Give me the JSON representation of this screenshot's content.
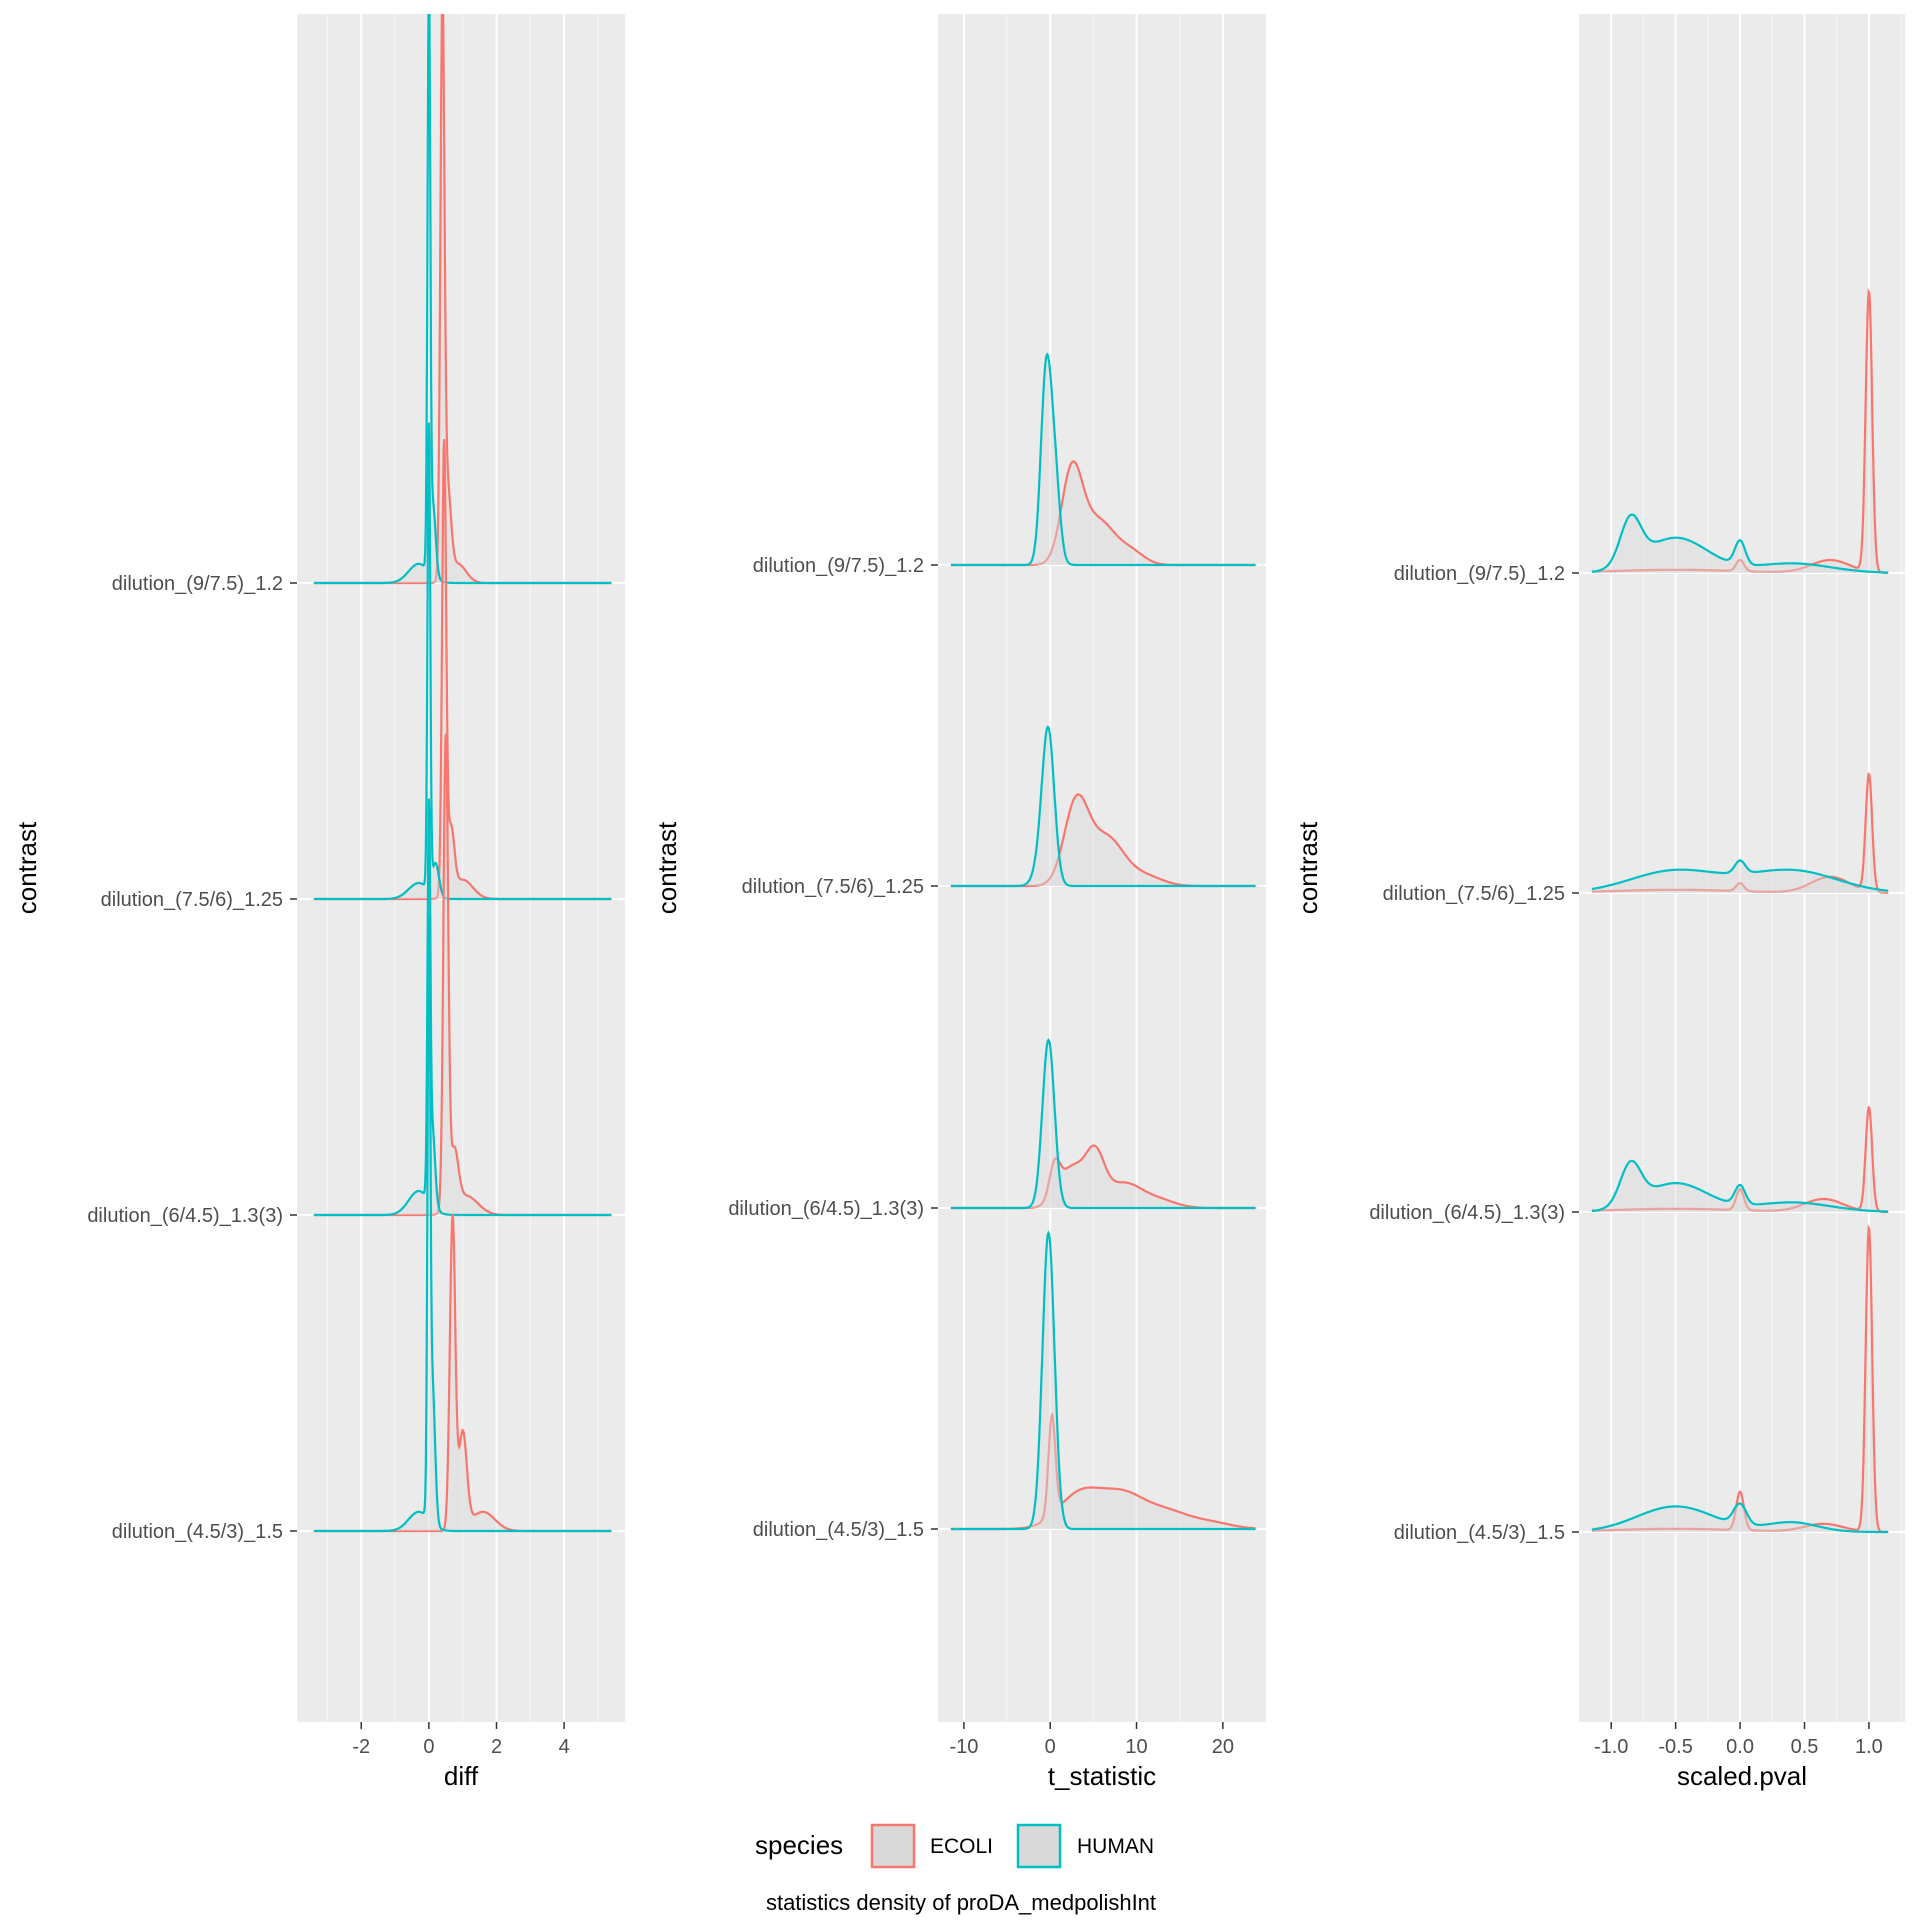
{
  "chart_data": [
    {
      "type": "area",
      "xlabel": "diff",
      "ylabel": "contrast",
      "xlim": [
        -3.9,
        5.8
      ],
      "xticks": [
        -2,
        0,
        2,
        4
      ],
      "xtick_labels": [
        "-2",
        "0",
        "2",
        "4"
      ],
      "categories": [
        "dilution_(9/7.5)_1.2",
        "dilution_(7.5/6)_1.25",
        "dilution_(6/4.5)_1.3(3)",
        "dilution_(4.5/3)_1.5"
      ],
      "x_range": [
        -3.4,
        5.4
      ],
      "curves": [
        {
          "category": "dilution_(9/7.5)_1.2",
          "species": "ECOLI",
          "peaks": [
            {
              "x": 0.4,
              "h": 3.53,
              "w": 0.06
            },
            {
              "x": 0.55,
              "h": 0.55,
              "w": 0.1
            },
            {
              "x": 0.85,
              "h": 0.12,
              "w": 0.25
            }
          ]
        },
        {
          "category": "dilution_(9/7.5)_1.2",
          "species": "HUMAN",
          "peaks": [
            {
              "x": 0.0,
              "h": 3.6,
              "w": 0.04
            },
            {
              "x": 0.12,
              "h": 0.45,
              "w": 0.08
            },
            {
              "x": -0.3,
              "h": 0.12,
              "w": 0.3
            }
          ]
        },
        {
          "category": "dilution_(7.5/6)_1.25",
          "species": "ECOLI",
          "peaks": [
            {
              "x": 0.45,
              "h": 2.8,
              "w": 0.06
            },
            {
              "x": 0.65,
              "h": 0.4,
              "w": 0.1
            },
            {
              "x": 1.0,
              "h": 0.12,
              "w": 0.3
            }
          ]
        },
        {
          "category": "dilution_(7.5/6)_1.25",
          "species": "HUMAN",
          "peaks": [
            {
              "x": 0.0,
              "h": 2.9,
              "w": 0.04
            },
            {
              "x": 0.2,
              "h": 0.2,
              "w": 0.1
            },
            {
              "x": -0.3,
              "h": 0.1,
              "w": 0.3
            }
          ]
        },
        {
          "category": "dilution_(6/4.5)_1.3(3)",
          "species": "ECOLI",
          "peaks": [
            {
              "x": 0.5,
              "h": 2.95,
              "w": 0.07
            },
            {
              "x": 0.75,
              "h": 0.35,
              "w": 0.12
            },
            {
              "x": 1.1,
              "h": 0.12,
              "w": 0.35
            }
          ]
        },
        {
          "category": "dilution_(6/4.5)_1.3(3)",
          "species": "HUMAN",
          "peaks": [
            {
              "x": 0.0,
              "h": 2.3,
              "w": 0.04
            },
            {
              "x": 0.1,
              "h": 0.5,
              "w": 0.08
            },
            {
              "x": -0.3,
              "h": 0.15,
              "w": 0.3
            }
          ]
        },
        {
          "category": "dilution_(4.5/3)_1.5",
          "species": "ECOLI",
          "peaks": [
            {
              "x": 0.7,
              "h": 1.95,
              "w": 0.08
            },
            {
              "x": 1.0,
              "h": 0.6,
              "w": 0.12
            },
            {
              "x": 1.6,
              "h": 0.12,
              "w": 0.35
            }
          ]
        },
        {
          "category": "dilution_(4.5/3)_1.5",
          "species": "HUMAN",
          "peaks": [
            {
              "x": 0.0,
              "h": 3.4,
              "w": 0.04
            },
            {
              "x": 0.1,
              "h": 0.9,
              "w": 0.08
            },
            {
              "x": -0.3,
              "h": 0.12,
              "w": 0.3
            }
          ]
        }
      ]
    },
    {
      "type": "area",
      "xlabel": "t_statistic",
      "ylabel": "contrast",
      "xlim": [
        -13,
        25
      ],
      "xticks": [
        -10,
        0,
        10,
        20
      ],
      "xtick_labels": [
        "-10",
        "0",
        "10",
        "20"
      ],
      "categories": [
        "dilution_(9/7.5)_1.2",
        "dilution_(7.5/6)_1.25",
        "dilution_(6/4.5)_1.3(3)",
        "dilution_(4.5/3)_1.5"
      ],
      "x_range": [
        -11.5,
        23.8
      ],
      "curves": [
        {
          "category": "dilution_(9/7.5)_1.2",
          "species": "ECOLI",
          "peaks": [
            {
              "x": 2.5,
              "h": 0.55,
              "w": 1.2
            },
            {
              "x": 5.5,
              "h": 0.28,
              "w": 2.0
            },
            {
              "x": 9.5,
              "h": 0.07,
              "w": 1.5
            }
          ]
        },
        {
          "category": "dilution_(9/7.5)_1.2",
          "species": "HUMAN",
          "peaks": [
            {
              "x": -0.5,
              "h": 1.15,
              "w": 0.6
            },
            {
              "x": 0.5,
              "h": 0.55,
              "w": 0.6
            }
          ]
        },
        {
          "category": "dilution_(7.5/6)_1.25",
          "species": "ECOLI",
          "peaks": [
            {
              "x": 3.0,
              "h": 0.5,
              "w": 1.4
            },
            {
              "x": 6.5,
              "h": 0.3,
              "w": 2.0
            },
            {
              "x": 11.0,
              "h": 0.06,
              "w": 2.0
            }
          ]
        },
        {
          "category": "dilution_(7.5/6)_1.25",
          "species": "HUMAN",
          "peaks": [
            {
              "x": -0.2,
              "h": 0.9,
              "w": 0.7
            },
            {
              "x": -1.0,
              "h": 0.15,
              "w": 0.8
            }
          ]
        },
        {
          "category": "dilution_(6/4.5)_1.3(3)",
          "species": "ECOLI",
          "peaks": [
            {
              "x": 0.5,
              "h": 0.2,
              "w": 0.6
            },
            {
              "x": 2.5,
              "h": 0.25,
              "w": 1.5
            },
            {
              "x": 5.2,
              "h": 0.3,
              "w": 1.1
            },
            {
              "x": 8.5,
              "h": 0.15,
              "w": 2.0
            },
            {
              "x": 12.5,
              "h": 0.05,
              "w": 2.0
            }
          ]
        },
        {
          "category": "dilution_(6/4.5)_1.3(3)",
          "species": "HUMAN",
          "peaks": [
            {
              "x": -0.2,
              "h": 1.05,
              "w": 0.7
            }
          ]
        },
        {
          "category": "dilution_(4.5/3)_1.5",
          "species": "ECOLI",
          "peaks": [
            {
              "x": 0.2,
              "h": 0.62,
              "w": 0.4
            },
            {
              "x": 3.5,
              "h": 0.22,
              "w": 2.5
            },
            {
              "x": 8.5,
              "h": 0.2,
              "w": 2.5
            },
            {
              "x": 13.5,
              "h": 0.1,
              "w": 2.5
            },
            {
              "x": 18.5,
              "h": 0.04,
              "w": 2.5
            }
          ]
        },
        {
          "category": "dilution_(4.5/3)_1.5",
          "species": "HUMAN",
          "peaks": [
            {
              "x": -0.2,
              "h": 1.85,
              "w": 0.7
            }
          ]
        }
      ]
    },
    {
      "type": "area",
      "xlabel": "scaled.pval",
      "ylabel": "contrast",
      "xlim": [
        -1.25,
        1.28
      ],
      "xticks": [
        -1.0,
        -0.5,
        0.0,
        0.5,
        1.0
      ],
      "xtick_labels": [
        "-1.0",
        "-0.5",
        "0.0",
        "0.5",
        "1.0"
      ],
      "categories": [
        "dilution_(9/7.5)_1.2",
        "dilution_(7.5/6)_1.25",
        "dilution_(6/4.5)_1.3(3)",
        "dilution_(4.5/3)_1.5"
      ],
      "x_range": [
        -1.15,
        1.15
      ],
      "curves": [
        {
          "category": "dilution_(9/7.5)_1.2",
          "species": "ECOLI",
          "peaks": [
            {
              "x": 1.0,
              "h": 1.75,
              "w": 0.025
            },
            {
              "x": 0.7,
              "h": 0.08,
              "w": 0.15
            },
            {
              "x": 0.0,
              "h": 0.07,
              "w": 0.03
            },
            {
              "x": -0.5,
              "h": 0.02,
              "w": 0.5
            }
          ]
        },
        {
          "category": "dilution_(9/7.5)_1.2",
          "species": "HUMAN",
          "peaks": [
            {
              "x": -0.85,
              "h": 0.28,
              "w": 0.08
            },
            {
              "x": -0.5,
              "h": 0.22,
              "w": 0.25
            },
            {
              "x": 0.0,
              "h": 0.15,
              "w": 0.04
            },
            {
              "x": 0.4,
              "h": 0.06,
              "w": 0.3
            }
          ]
        },
        {
          "category": "dilution_(7.5/6)_1.25",
          "species": "ECOLI",
          "peaks": [
            {
              "x": 1.0,
              "h": 0.73,
              "w": 0.025
            },
            {
              "x": 0.7,
              "h": 0.1,
              "w": 0.15
            },
            {
              "x": 0.0,
              "h": 0.05,
              "w": 0.03
            },
            {
              "x": -0.5,
              "h": 0.02,
              "w": 0.5
            }
          ]
        },
        {
          "category": "dilution_(7.5/6)_1.25",
          "species": "HUMAN",
          "peaks": [
            {
              "x": -0.5,
              "h": 0.14,
              "w": 0.35
            },
            {
              "x": 0.0,
              "h": 0.08,
              "w": 0.04
            },
            {
              "x": 0.4,
              "h": 0.14,
              "w": 0.35
            }
          ]
        },
        {
          "category": "dilution_(6/4.5)_1.3(3)",
          "species": "ECOLI",
          "peaks": [
            {
              "x": 1.0,
              "h": 0.65,
              "w": 0.025
            },
            {
              "x": 0.65,
              "h": 0.08,
              "w": 0.15
            },
            {
              "x": 0.0,
              "h": 0.13,
              "w": 0.03
            },
            {
              "x": -0.5,
              "h": 0.02,
              "w": 0.5
            }
          ]
        },
        {
          "category": "dilution_(6/4.5)_1.3(3)",
          "species": "HUMAN",
          "peaks": [
            {
              "x": -0.85,
              "h": 0.25,
              "w": 0.08
            },
            {
              "x": -0.5,
              "h": 0.18,
              "w": 0.25
            },
            {
              "x": 0.0,
              "h": 0.12,
              "w": 0.04
            },
            {
              "x": 0.4,
              "h": 0.06,
              "w": 0.3
            }
          ]
        },
        {
          "category": "dilution_(4.5/3)_1.5",
          "species": "ECOLI",
          "peaks": [
            {
              "x": 1.0,
              "h": 1.9,
              "w": 0.025
            },
            {
              "x": 0.65,
              "h": 0.05,
              "w": 0.15
            },
            {
              "x": 0.0,
              "h": 0.24,
              "w": 0.03
            },
            {
              "x": -0.5,
              "h": 0.02,
              "w": 0.5
            }
          ]
        },
        {
          "category": "dilution_(4.5/3)_1.5",
          "species": "HUMAN",
          "peaks": [
            {
              "x": -0.5,
              "h": 0.16,
              "w": 0.3
            },
            {
              "x": 0.0,
              "h": 0.13,
              "w": 0.05
            },
            {
              "x": 0.4,
              "h": 0.06,
              "w": 0.2
            }
          ]
        }
      ]
    }
  ],
  "legend": {
    "title": "species",
    "placement": "bottom",
    "items": [
      {
        "label": "ECOLI",
        "color": "#F8766D"
      },
      {
        "label": "HUMAN",
        "color": "#00BFC4"
      }
    ]
  },
  "caption": "statistics density of proDA_medpolishInt",
  "colors": {
    "panel_bg": "#EBEBEB",
    "grid": "#FFFFFF",
    "fill": "#D9D9D9",
    "ECOLI": "#F8766D",
    "HUMAN": "#00BFC4"
  }
}
